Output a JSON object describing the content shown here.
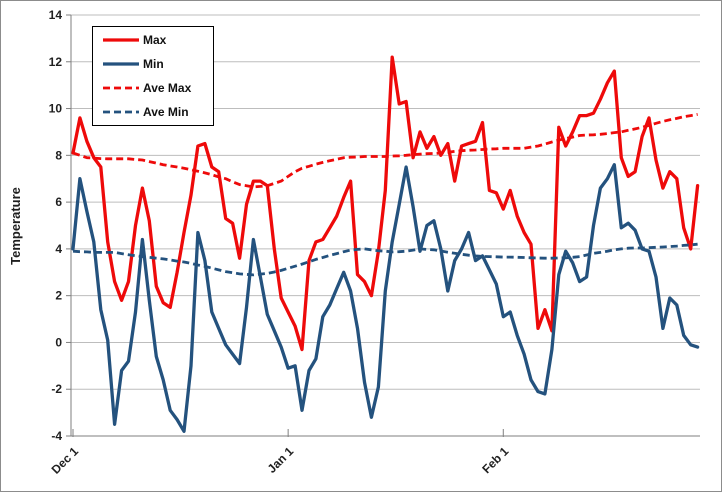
{
  "window": {
    "background": "#ffffff",
    "border_color": "#8c8c8c"
  },
  "chart_data": {
    "type": "line",
    "title": "",
    "ylabel": "Temperature",
    "xlabel": "",
    "ylim": [
      -4,
      14
    ],
    "ytick_step": 2,
    "yticks": [
      14,
      12,
      10,
      8,
      6,
      4,
      2,
      0,
      -2,
      -4
    ],
    "grid": "horizontal",
    "legend_position": "inside-top-left",
    "n_points": 91,
    "x_unit": "day",
    "x_start_label": "Dec 1",
    "xticks": [
      {
        "label": "Dec 1",
        "day_index": 0
      },
      {
        "label": "Jan 1",
        "day_index": 31
      },
      {
        "label": "Feb 1",
        "day_index": 62
      }
    ],
    "colors": {
      "red": "#ee0a0a",
      "blue": "#24527e",
      "gridline": "#bdbdbd",
      "axis": "#7f7f7f",
      "text": "#1f1f1f"
    },
    "series": [
      {
        "name": "Max",
        "color": "#ee0a0a",
        "style": "solid",
        "values": [
          8.1,
          9.6,
          8.6,
          7.9,
          7.5,
          4.3,
          2.6,
          1.8,
          2.6,
          5.0,
          6.6,
          5.2,
          2.4,
          1.7,
          1.5,
          3.0,
          4.7,
          6.3,
          8.4,
          8.5,
          7.5,
          7.3,
          5.3,
          5.1,
          3.6,
          5.9,
          6.9,
          6.9,
          6.7,
          4.0,
          1.9,
          1.3,
          0.7,
          -0.3,
          3.5,
          4.3,
          4.4,
          4.9,
          5.4,
          6.2,
          6.9,
          2.9,
          2.6,
          2.0,
          3.9,
          6.5,
          12.2,
          10.2,
          10.3,
          7.9,
          9.0,
          8.3,
          8.8,
          8.0,
          8.5,
          6.9,
          8.4,
          8.5,
          8.6,
          9.4,
          6.5,
          6.4,
          5.7,
          6.5,
          5.4,
          4.7,
          4.2,
          0.6,
          1.4,
          0.5,
          9.2,
          8.4,
          9.0,
          9.7,
          9.7,
          9.8,
          10.4,
          11.1,
          11.6,
          7.9,
          7.1,
          7.3,
          8.8,
          9.6,
          7.8,
          6.6,
          7.3,
          7.0,
          4.9,
          4.0,
          6.7
        ]
      },
      {
        "name": "Min",
        "color": "#24527e",
        "style": "solid",
        "values": [
          4.0,
          7.0,
          5.6,
          4.3,
          1.4,
          0.1,
          -3.5,
          -1.2,
          -0.8,
          1.3,
          4.4,
          1.8,
          -0.6,
          -1.6,
          -2.9,
          -3.3,
          -3.8,
          -1.0,
          4.7,
          3.5,
          1.3,
          0.6,
          -0.1,
          -0.5,
          -0.9,
          1.5,
          4.4,
          2.8,
          1.2,
          0.5,
          -0.2,
          -1.1,
          -1.0,
          -2.9,
          -1.2,
          -0.7,
          1.1,
          1.6,
          2.3,
          3.0,
          2.2,
          0.6,
          -1.7,
          -3.2,
          -1.9,
          2.2,
          4.3,
          5.9,
          7.5,
          5.8,
          3.9,
          5.0,
          5.2,
          4.0,
          2.2,
          3.5,
          4.0,
          4.7,
          3.5,
          3.7,
          3.1,
          2.5,
          1.1,
          1.3,
          0.3,
          -0.5,
          -1.6,
          -2.1,
          -2.2,
          -0.3,
          2.9,
          3.9,
          3.4,
          2.6,
          2.8,
          5.0,
          6.6,
          7.0,
          7.6,
          4.9,
          5.1,
          4.8,
          4.0,
          3.9,
          2.8,
          0.6,
          1.9,
          1.6,
          0.3,
          -0.1,
          -0.2
        ]
      },
      {
        "name": "Ave Max",
        "color": "#ee0a0a",
        "style": "dashed",
        "values": [
          8.1,
          8.0,
          7.9,
          7.88,
          7.86,
          7.85,
          7.85,
          7.85,
          7.85,
          7.82,
          7.8,
          7.73,
          7.67,
          7.6,
          7.55,
          7.5,
          7.45,
          7.38,
          7.32,
          7.25,
          7.17,
          7.08,
          7.0,
          6.87,
          6.75,
          6.7,
          6.65,
          6.67,
          6.7,
          6.8,
          6.9,
          7.1,
          7.3,
          7.45,
          7.53,
          7.62,
          7.7,
          7.77,
          7.83,
          7.9,
          7.92,
          7.93,
          7.95,
          7.95,
          7.95,
          7.95,
          7.97,
          7.98,
          8.0,
          8.03,
          8.05,
          8.07,
          8.08,
          8.1,
          8.13,
          8.17,
          8.2,
          8.22,
          8.23,
          8.25,
          8.27,
          8.28,
          8.3,
          8.3,
          8.3,
          8.3,
          8.35,
          8.4,
          8.48,
          8.57,
          8.65,
          8.72,
          8.78,
          8.85,
          8.87,
          8.88,
          8.9,
          8.93,
          8.97,
          9.0,
          9.07,
          9.13,
          9.2,
          9.28,
          9.37,
          9.45,
          9.52,
          9.58,
          9.65,
          9.7,
          9.75
        ]
      },
      {
        "name": "Ave Min",
        "color": "#24527e",
        "style": "dashed",
        "values": [
          3.9,
          3.88,
          3.87,
          3.85,
          3.85,
          3.85,
          3.85,
          3.8,
          3.75,
          3.71,
          3.67,
          3.64,
          3.6,
          3.57,
          3.53,
          3.48,
          3.44,
          3.38,
          3.31,
          3.25,
          3.18,
          3.1,
          3.03,
          2.98,
          2.93,
          2.91,
          2.89,
          2.92,
          2.95,
          3.01,
          3.08,
          3.17,
          3.26,
          3.35,
          3.45,
          3.55,
          3.63,
          3.72,
          3.8,
          3.88,
          3.95,
          3.98,
          4.0,
          3.96,
          3.92,
          3.9,
          3.87,
          3.88,
          3.9,
          3.95,
          4.0,
          3.98,
          3.96,
          3.91,
          3.86,
          3.81,
          3.77,
          3.73,
          3.7,
          3.68,
          3.67,
          3.66,
          3.65,
          3.65,
          3.64,
          3.63,
          3.62,
          3.61,
          3.6,
          3.6,
          3.61,
          3.62,
          3.64,
          3.67,
          3.74,
          3.81,
          3.85,
          3.9,
          3.96,
          4.0,
          4.03,
          4.04,
          4.04,
          4.05,
          4.07,
          4.08,
          4.1,
          4.12,
          4.15,
          4.17,
          4.2
        ]
      }
    ]
  }
}
